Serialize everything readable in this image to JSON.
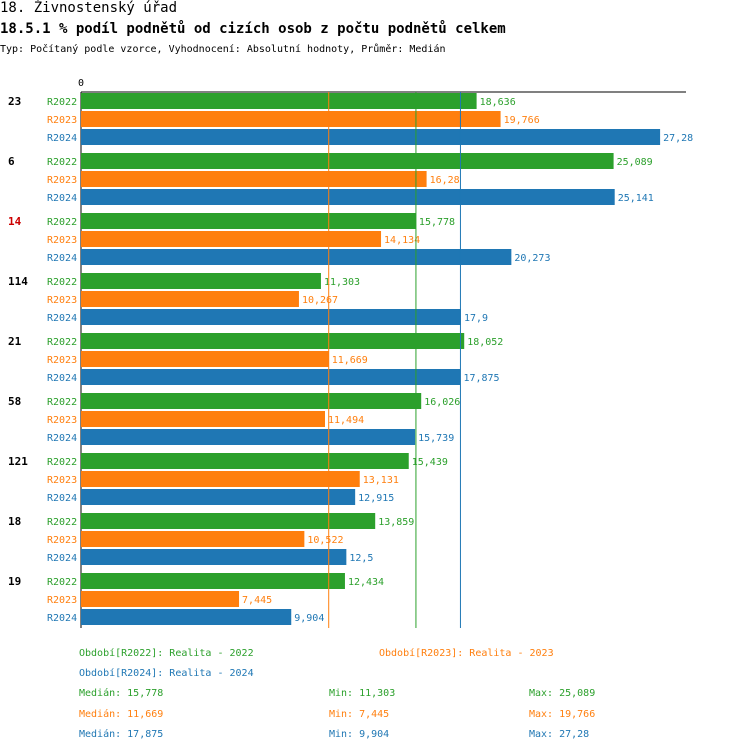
{
  "header": {
    "title": "18. Živnostenský úřad",
    "subtitle": "18.5.1 % podíl podnětů od cizích osob z počtu podnětů celkem",
    "type_line": "Typ: Počítaný podle vzorce, Vyhodnocení: Absolutní hodnoty, Průměr: Medián"
  },
  "colors": {
    "R2022": "#2ca02c",
    "R2023": "#ff7f0e",
    "R2024": "#1f77b4",
    "highlight": "#cc0000"
  },
  "chart_data": {
    "type": "bar",
    "orientation": "horizontal",
    "axis_zero_label": "0",
    "xlim": [
      0,
      28.5
    ],
    "series_names": [
      "R2022",
      "R2023",
      "R2024"
    ],
    "groups": [
      {
        "label": "23",
        "highlight": false,
        "values": [
          18.636,
          19.766,
          27.28
        ],
        "labels": [
          "18,636",
          "19,766",
          "27,28"
        ]
      },
      {
        "label": "6",
        "highlight": false,
        "values": [
          25.089,
          16.28,
          25.141
        ],
        "labels": [
          "25,089",
          "16,28",
          "25,141"
        ]
      },
      {
        "label": "14",
        "highlight": true,
        "values": [
          15.778,
          14.134,
          20.273
        ],
        "labels": [
          "15,778",
          "14,134",
          "20,273"
        ]
      },
      {
        "label": "114",
        "highlight": false,
        "values": [
          11.303,
          10.267,
          17.9
        ],
        "labels": [
          "11,303",
          "10,267",
          "17,9"
        ]
      },
      {
        "label": "21",
        "highlight": false,
        "values": [
          18.052,
          11.669,
          17.875
        ],
        "labels": [
          "18,052",
          "11,669",
          "17,875"
        ]
      },
      {
        "label": "58",
        "highlight": false,
        "values": [
          16.026,
          11.494,
          15.739
        ],
        "labels": [
          "16,026",
          "11,494",
          "15,739"
        ]
      },
      {
        "label": "121",
        "highlight": false,
        "values": [
          15.439,
          13.131,
          12.915
        ],
        "labels": [
          "15,439",
          "13,131",
          "12,915"
        ]
      },
      {
        "label": "18",
        "highlight": false,
        "values": [
          13.859,
          10.522,
          12.5
        ],
        "labels": [
          "13,859",
          "10,522",
          "12,5"
        ]
      },
      {
        "label": "19",
        "highlight": false,
        "values": [
          12.434,
          7.445,
          9.904
        ],
        "labels": [
          "12,434",
          "7,445",
          "9,904"
        ]
      }
    ],
    "reference_lines": [
      {
        "series": "R2023",
        "value": 11.669
      },
      {
        "series": "R2022",
        "value": 15.778
      },
      {
        "series": "R2024",
        "value": 17.875
      }
    ]
  },
  "legend": {
    "period_r2022": "Období[R2022]: Realita - 2022",
    "period_r2023": "Období[R2023]: Realita - 2023",
    "period_r2024": "Období[R2024]: Realita - 2024",
    "stats": [
      {
        "series": "R2022",
        "median": "Medián: 15,778",
        "min": "Min: 11,303",
        "max": "Max: 25,089"
      },
      {
        "series": "R2023",
        "median": "Medián: 11,669",
        "min": "Min: 7,445",
        "max": "Max: 19,766"
      },
      {
        "series": "R2024",
        "median": "Medián: 17,875",
        "min": "Min: 9,904",
        "max": "Max: 27,28"
      }
    ]
  }
}
